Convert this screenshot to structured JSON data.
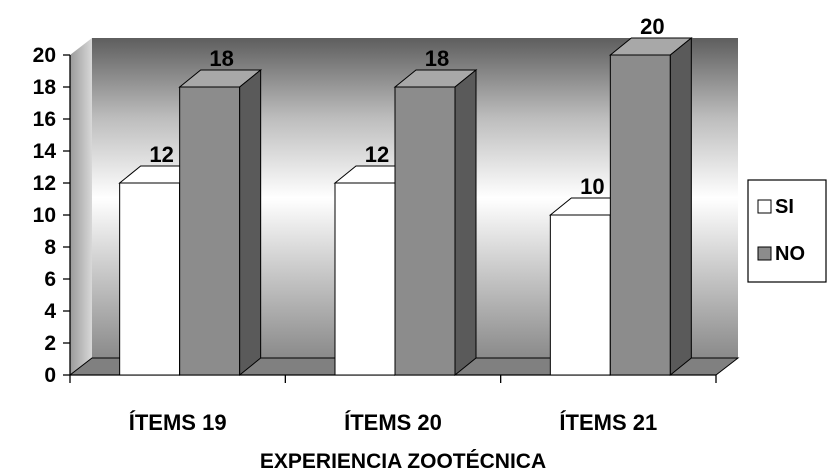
{
  "chart_data": {
    "type": "bar",
    "title": "",
    "xlabel": "EXPERIENCIA ZOOTÉCNICA",
    "ylabel": "",
    "categories": [
      "ÍTEMS 19",
      "ÍTEMS 20",
      "ÍTEMS 21"
    ],
    "series": [
      {
        "name": "SI",
        "values": [
          12,
          12,
          10
        ],
        "color": "#ffffff"
      },
      {
        "name": "NO",
        "values": [
          18,
          18,
          20
        ],
        "color": "#8c8c8c"
      }
    ],
    "ylim": [
      0,
      20
    ],
    "yticks": [
      0,
      2,
      4,
      6,
      8,
      10,
      12,
      14,
      16,
      18,
      20
    ],
    "grid": false,
    "legend": "right",
    "style": "3d-clustered-column"
  }
}
